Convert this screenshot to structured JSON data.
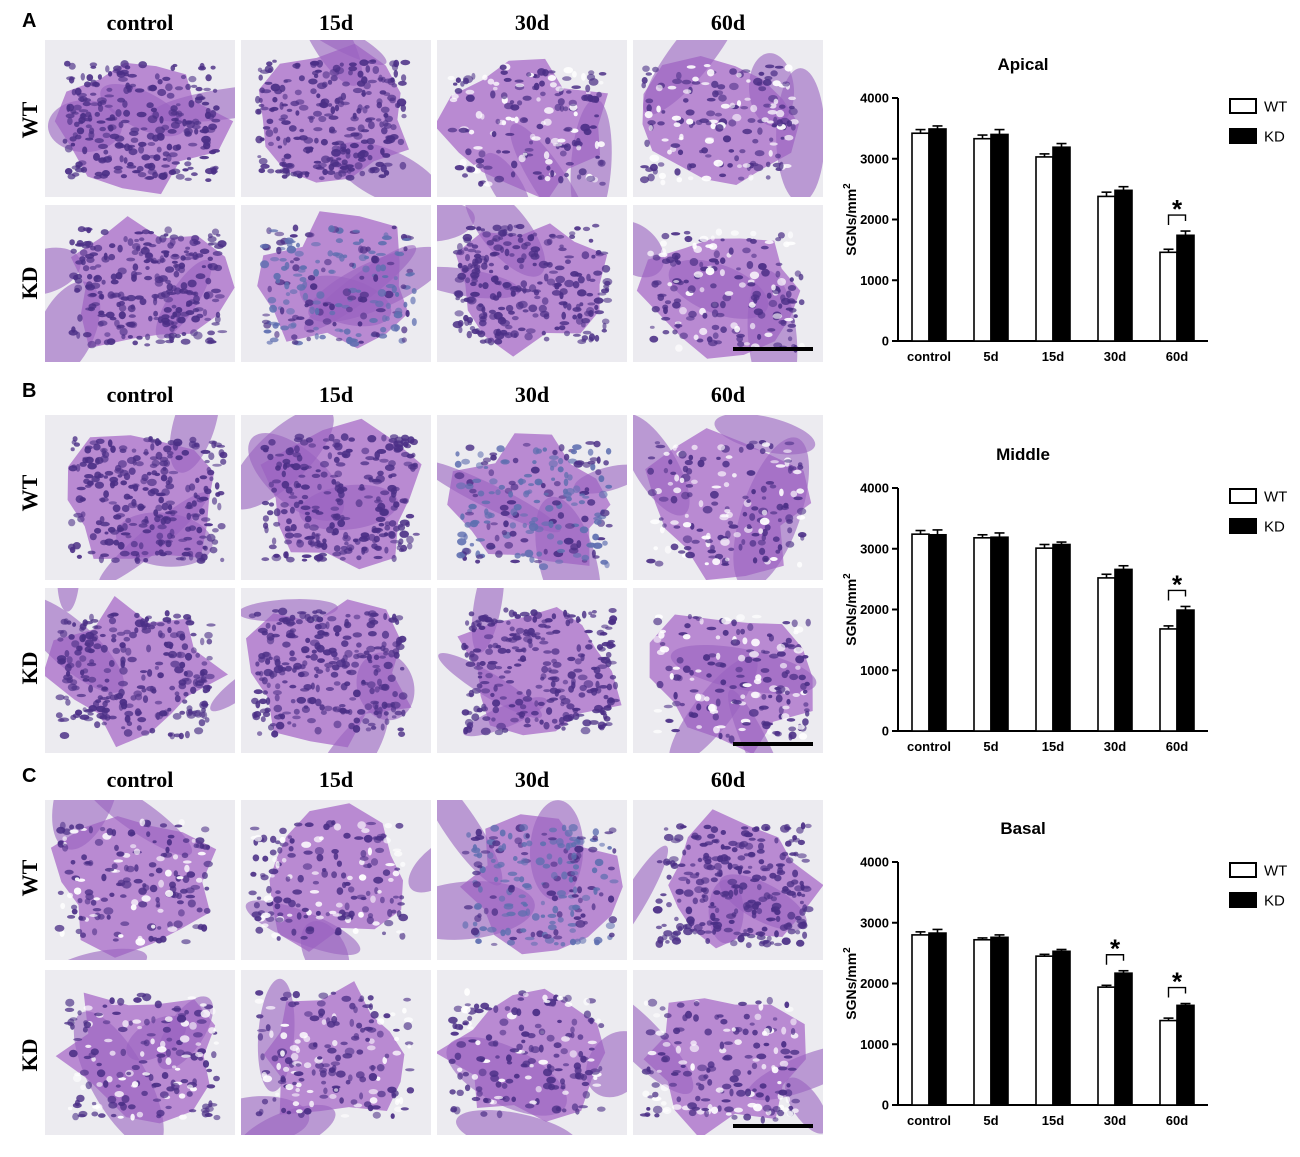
{
  "panels": [
    {
      "letter": "A",
      "columns": [
        "control",
        "15d",
        "30d",
        "60d"
      ],
      "rows": [
        "WT",
        "KD"
      ]
    },
    {
      "letter": "B",
      "columns": [
        "control",
        "15d",
        "30d",
        "60d"
      ],
      "rows": [
        "WT",
        "KD"
      ]
    },
    {
      "letter": "C",
      "columns": [
        "control",
        "15d",
        "30d",
        "60d"
      ],
      "rows": [
        "WT",
        "KD"
      ]
    }
  ],
  "colors": {
    "tissue_light": "#b98ad2",
    "tissue_mid": "#9a62c0",
    "cell_dark": "#4b2f86",
    "background_slide": "#ecebf0",
    "wt_fill": "#ffffff",
    "kd_fill": "#000000"
  },
  "chart_data": [
    {
      "type": "bar",
      "title": "Apical",
      "ylabel": "SGNs/mm2",
      "ylim": [
        0,
        4000
      ],
      "yticks": [
        0,
        1000,
        2000,
        3000,
        4000
      ],
      "categories": [
        "control",
        "5d",
        "15d",
        "30d",
        "60d"
      ],
      "series": [
        {
          "name": "WT",
          "values": [
            3420,
            3330,
            3030,
            2380,
            1460
          ],
          "errors": [
            60,
            60,
            50,
            70,
            50
          ]
        },
        {
          "name": "KD",
          "values": [
            3490,
            3400,
            3190,
            2480,
            1740
          ],
          "errors": [
            50,
            80,
            60,
            60,
            70
          ]
        }
      ],
      "significance": [
        {
          "category": "60d",
          "label": "*"
        }
      ],
      "legend": "top-right"
    },
    {
      "type": "bar",
      "title": "Middle",
      "ylabel": "SGNs/mm2",
      "ylim": [
        0,
        4000
      ],
      "yticks": [
        0,
        1000,
        2000,
        3000,
        4000
      ],
      "categories": [
        "control",
        "5d",
        "15d",
        "30d",
        "60d"
      ],
      "series": [
        {
          "name": "WT",
          "values": [
            3240,
            3180,
            3010,
            2520,
            1680
          ],
          "errors": [
            60,
            50,
            60,
            60,
            50
          ]
        },
        {
          "name": "KD",
          "values": [
            3230,
            3190,
            3070,
            2660,
            1990
          ],
          "errors": [
            80,
            70,
            40,
            60,
            60
          ]
        }
      ],
      "significance": [
        {
          "category": "60d",
          "label": "*"
        }
      ],
      "legend": "top-right"
    },
    {
      "type": "bar",
      "title": "Basal",
      "ylabel": "SGNs/mm2",
      "ylim": [
        0,
        4000
      ],
      "yticks": [
        0,
        1000,
        2000,
        3000,
        4000
      ],
      "categories": [
        "control",
        "5d",
        "15d",
        "30d",
        "60d"
      ],
      "series": [
        {
          "name": "WT",
          "values": [
            2800,
            2720,
            2450,
            1940,
            1390
          ],
          "errors": [
            50,
            30,
            30,
            30,
            40
          ]
        },
        {
          "name": "KD",
          "values": [
            2830,
            2760,
            2530,
            2170,
            1640
          ],
          "errors": [
            60,
            40,
            30,
            40,
            30
          ]
        }
      ],
      "significance": [
        {
          "category": "30d",
          "label": "*"
        },
        {
          "category": "60d",
          "label": "*"
        }
      ],
      "legend": "top-right"
    }
  ]
}
